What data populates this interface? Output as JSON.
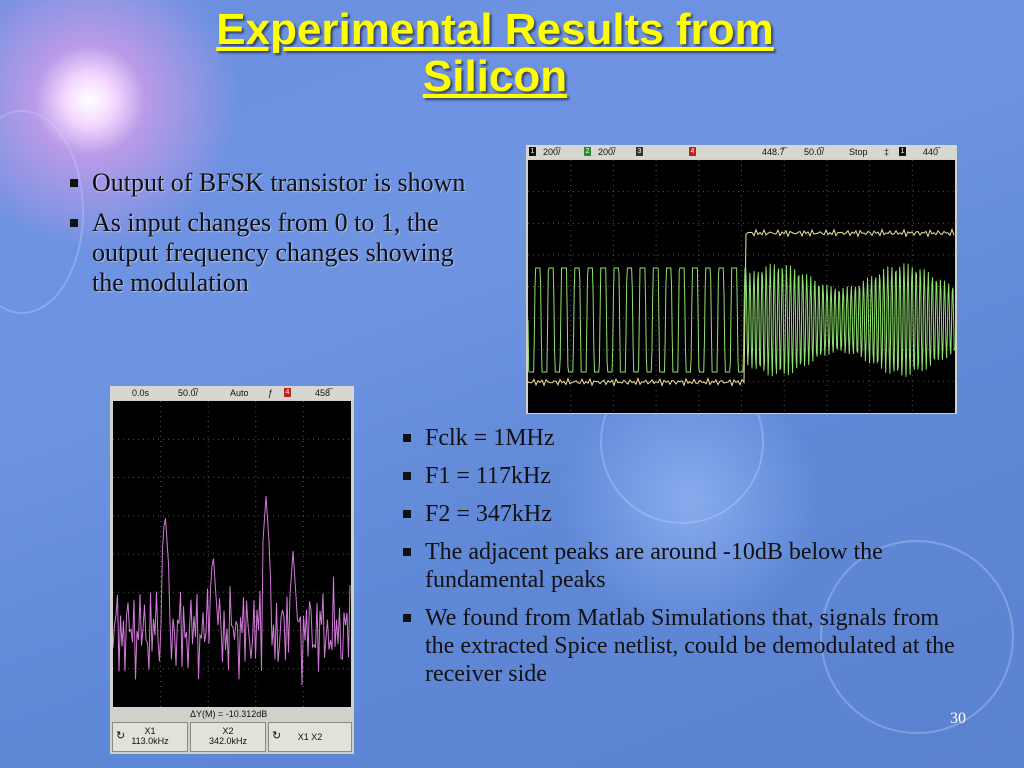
{
  "slide": {
    "title_line1": "Experimental Results from",
    "title_line2": "Silicon",
    "page_number": "30"
  },
  "bullets_left": [
    "Output of BFSK transistor is shown",
    "As input changes from 0 to 1, the output frequency changes showing the modulation"
  ],
  "bullets_right": [
    "Fclk = 1MHz",
    "F1 = 117kHz",
    "F2 = 347kHz",
    "The adjacent peaks are around -10dB below the fundamental peaks",
    "We found from Matlab Simulations that, signals from the extracted Spice netlist, could be demodulated at the receiver side"
  ],
  "scope_time": {
    "ch1_num": "1",
    "ch1_scale": "200̅/",
    "ch2_num": "2",
    "ch2_scale": "200̅/",
    "ch3_num": "3",
    "ch4_num": "4",
    "delay": "448.7̅",
    "timebase": "50.0̅/",
    "mode": "Stop",
    "trig_num": "1",
    "trig_level": "440̅"
  },
  "scope_fft": {
    "offset": "0.0s",
    "scale": "50.0̅/",
    "mode": "Auto",
    "ch_num": "4",
    "level": "458̅",
    "delta_readout": "ΔY(M) = -10.312dB",
    "x1_label": "X1",
    "x1_value": "113.0kHz",
    "x2_label": "X2",
    "x2_value": "342.0kHz",
    "x1x2_label": "X1 X2"
  },
  "colors": {
    "title": "#ffff00",
    "ch1": "#f2e6a0",
    "ch2": "#8fe070",
    "fft": "#d07ad8"
  }
}
